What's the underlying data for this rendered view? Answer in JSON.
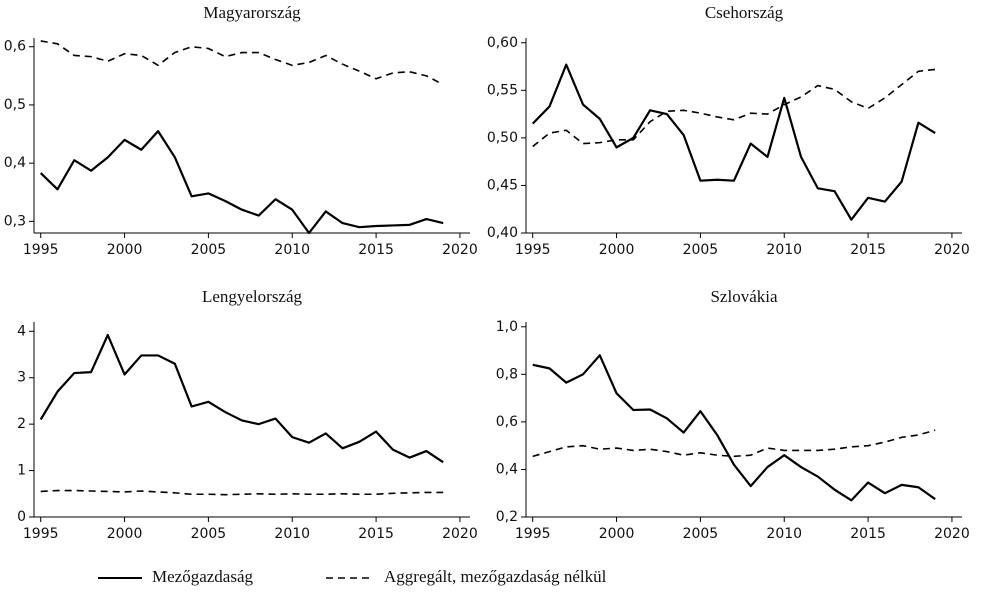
{
  "chart_data": [
    {
      "type": "line",
      "title": "Magyarország",
      "x": [
        1995,
        1996,
        1997,
        1998,
        1999,
        2000,
        2001,
        2002,
        2003,
        2004,
        2005,
        2006,
        2007,
        2008,
        2009,
        2010,
        2011,
        2012,
        2013,
        2014,
        2015,
        2016,
        2017,
        2018,
        2019
      ],
      "series": [
        {
          "name": "Mezőgazdaság",
          "color": "#000000",
          "style": "solid",
          "values": [
            0.383,
            0.355,
            0.405,
            0.387,
            0.41,
            0.44,
            0.423,
            0.455,
            0.41,
            0.343,
            0.348,
            0.335,
            0.32,
            0.31,
            0.338,
            0.32,
            0.28,
            0.317,
            0.297,
            0.29,
            0.292,
            0.293,
            0.294,
            0.304,
            0.297
          ]
        },
        {
          "name": "Aggregált, mezőgazdaság nélkül",
          "color": "#000000",
          "style": "dashed",
          "values": [
            0.61,
            0.605,
            0.585,
            0.583,
            0.575,
            0.588,
            0.585,
            0.568,
            0.59,
            0.6,
            0.597,
            0.583,
            0.59,
            0.59,
            0.578,
            0.568,
            0.573,
            0.585,
            0.57,
            0.558,
            0.545,
            0.555,
            0.557,
            0.55,
            0.535
          ]
        }
      ],
      "xlim": [
        1994.6,
        2020.6
      ],
      "xticks": [
        1995,
        2000,
        2005,
        2010,
        2015,
        2020
      ],
      "ylim": [
        0.28,
        0.615
      ],
      "yticks": [
        {
          "value": 0.3,
          "label": "0,3"
        },
        {
          "value": 0.4,
          "label": "0,4"
        },
        {
          "value": 0.5,
          "label": "0,5"
        },
        {
          "value": 0.6,
          "label": "0,6"
        }
      ]
    },
    {
      "type": "line",
      "title": "Csehország",
      "x": [
        1995,
        1996,
        1997,
        1998,
        1999,
        2000,
        2001,
        2002,
        2003,
        2004,
        2005,
        2006,
        2007,
        2008,
        2009,
        2010,
        2011,
        2012,
        2013,
        2014,
        2015,
        2016,
        2017,
        2018,
        2019
      ],
      "series": [
        {
          "color": "#000000",
          "style": "solid",
          "values": [
            0.515,
            0.533,
            0.577,
            0.535,
            0.52,
            0.49,
            0.5,
            0.529,
            0.525,
            0.503,
            0.455,
            0.456,
            0.455,
            0.494,
            0.48,
            0.542,
            0.48,
            0.447,
            0.444,
            0.414,
            0.437,
            0.433,
            0.454,
            0.516,
            0.505
          ]
        },
        {
          "color": "#000000",
          "style": "dashed",
          "values": [
            0.491,
            0.505,
            0.508,
            0.494,
            0.495,
            0.498,
            0.498,
            0.517,
            0.528,
            0.529,
            0.526,
            0.522,
            0.519,
            0.526,
            0.525,
            0.535,
            0.543,
            0.555,
            0.551,
            0.538,
            0.531,
            0.542,
            0.556,
            0.57,
            0.572
          ]
        }
      ],
      "xlim": [
        1994.6,
        2020.6
      ],
      "xticks": [
        1995,
        2000,
        2005,
        2010,
        2015,
        2020
      ],
      "ylim": [
        0.4,
        0.605
      ],
      "yticks": [
        {
          "value": 0.4,
          "label": "0,40"
        },
        {
          "value": 0.45,
          "label": "0,45"
        },
        {
          "value": 0.5,
          "label": "0,50"
        },
        {
          "value": 0.55,
          "label": "0,55"
        },
        {
          "value": 0.6,
          "label": "0,60"
        }
      ]
    },
    {
      "type": "line",
      "title": "Lengyelország",
      "x": [
        1995,
        1996,
        1997,
        1998,
        1999,
        2000,
        2001,
        2002,
        2003,
        2004,
        2005,
        2006,
        2007,
        2008,
        2009,
        2010,
        2011,
        2012,
        2013,
        2014,
        2015,
        2016,
        2017,
        2018,
        2019
      ],
      "series": [
        {
          "color": "#000000",
          "style": "solid",
          "values": [
            2.1,
            2.7,
            3.1,
            3.12,
            3.92,
            3.07,
            3.48,
            3.48,
            3.3,
            2.38,
            2.48,
            2.26,
            2.08,
            2.0,
            2.12,
            1.72,
            1.6,
            1.8,
            1.48,
            1.62,
            1.84,
            1.45,
            1.28,
            1.42,
            1.18
          ]
        },
        {
          "color": "#000000",
          "style": "dashed",
          "values": [
            0.55,
            0.57,
            0.57,
            0.56,
            0.55,
            0.54,
            0.56,
            0.54,
            0.52,
            0.49,
            0.49,
            0.48,
            0.49,
            0.5,
            0.49,
            0.5,
            0.49,
            0.49,
            0.5,
            0.49,
            0.49,
            0.51,
            0.52,
            0.53,
            0.53
          ]
        }
      ],
      "xlim": [
        1994.6,
        2020.6
      ],
      "xticks": [
        1995,
        2000,
        2005,
        2010,
        2015,
        2020
      ],
      "ylim": [
        0,
        4.2
      ],
      "yticks": [
        0,
        1,
        2,
        3,
        4
      ]
    },
    {
      "type": "line",
      "title": "Szlovákia",
      "x": [
        1995,
        1996,
        1997,
        1998,
        1999,
        2000,
        2001,
        2002,
        2003,
        2004,
        2005,
        2006,
        2007,
        2008,
        2009,
        2010,
        2011,
        2012,
        2013,
        2014,
        2015,
        2016,
        2017,
        2018,
        2019
      ],
      "series": [
        {
          "color": "#000000",
          "style": "solid",
          "values": [
            0.84,
            0.825,
            0.765,
            0.8,
            0.88,
            0.72,
            0.65,
            0.652,
            0.615,
            0.555,
            0.645,
            0.545,
            0.42,
            0.33,
            0.41,
            0.46,
            0.41,
            0.37,
            0.315,
            0.27,
            0.345,
            0.3,
            0.335,
            0.325,
            0.275
          ]
        },
        {
          "color": "#000000",
          "style": "dashed",
          "values": [
            0.455,
            0.475,
            0.495,
            0.5,
            0.485,
            0.49,
            0.48,
            0.485,
            0.475,
            0.46,
            0.47,
            0.46,
            0.455,
            0.46,
            0.49,
            0.48,
            0.48,
            0.48,
            0.485,
            0.495,
            0.5,
            0.515,
            0.535,
            0.545,
            0.565
          ]
        }
      ],
      "xlim": [
        1994.6,
        2020.6
      ],
      "xticks": [
        1995,
        2000,
        2005,
        2010,
        2015,
        2020
      ],
      "ylim": [
        0.2,
        1.02
      ],
      "yticks": [
        {
          "value": 0.2,
          "label": "0,2"
        },
        {
          "value": 0.4,
          "label": "0,4"
        },
        {
          "value": 0.6,
          "label": "0,6"
        },
        {
          "value": 0.8,
          "label": "0,8"
        },
        {
          "value": 1.0,
          "label": "1,0"
        }
      ]
    }
  ]
}
